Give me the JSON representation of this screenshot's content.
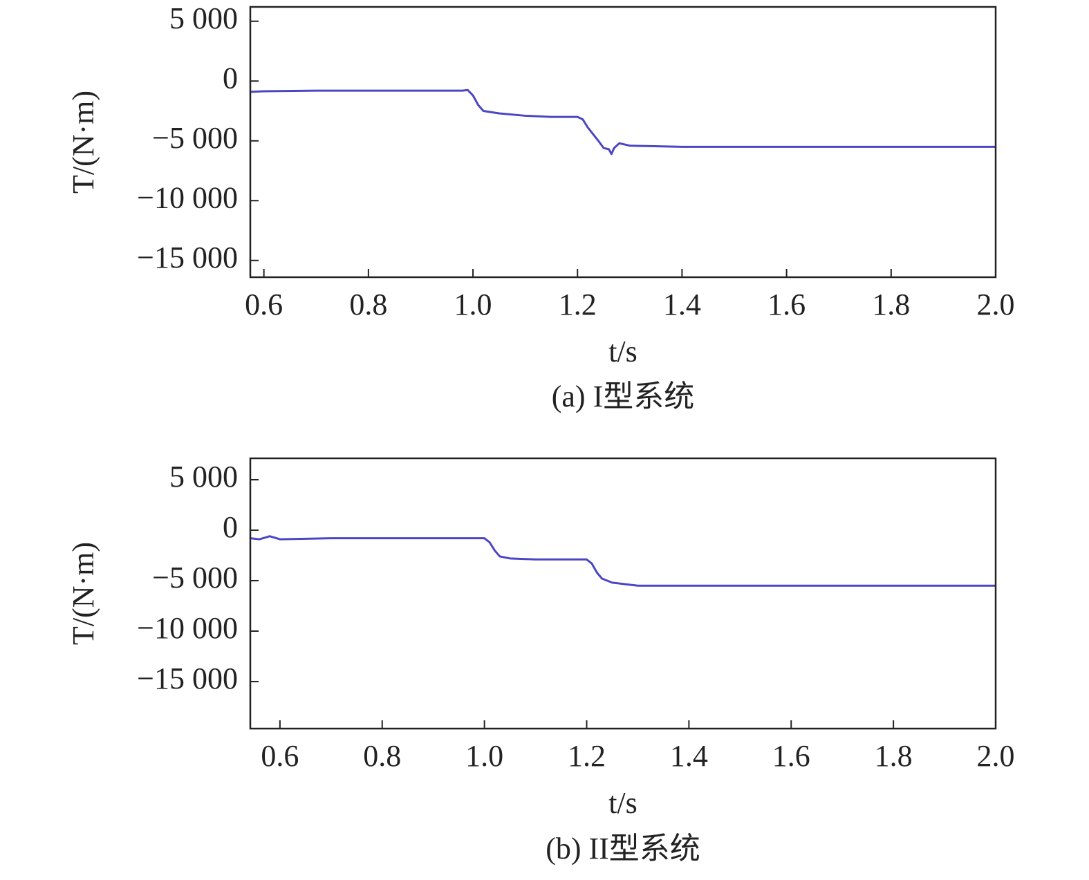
{
  "chart_data": [
    {
      "type": "line",
      "caption": "(a) I型系统",
      "xlabel": "t/s",
      "ylabel": "T/(N·m)",
      "xlim": [
        0.574,
        2.0
      ],
      "ylim": [
        -16400,
        6200
      ],
      "xticks": [
        0.6,
        0.8,
        {
          "value": 1.0,
          "label": "1.0"
        },
        1.2,
        1.4,
        1.6,
        1.8,
        {
          "value": 2.0,
          "label": "2.0"
        }
      ],
      "yticks": [
        {
          "value": 5000,
          "label": "5 000"
        },
        0,
        {
          "value": -5000,
          "label": "−5 000"
        },
        {
          "value": -10000,
          "label": "−10 000"
        },
        {
          "value": -15000,
          "label": "−15 000"
        }
      ],
      "x": [
        0.574,
        0.6,
        0.7,
        0.8,
        0.9,
        0.98,
        0.99,
        1.0,
        1.01,
        1.02,
        1.05,
        1.1,
        1.15,
        1.19,
        1.2,
        1.21,
        1.22,
        1.24,
        1.25,
        1.26,
        1.265,
        1.27,
        1.28,
        1.3,
        1.4,
        1.6,
        1.8,
        2.0
      ],
      "series": [
        {
          "color": "#4a46c4",
          "values": [
            -900,
            -850,
            -800,
            -800,
            -800,
            -800,
            -750,
            -1200,
            -2000,
            -2500,
            -2700,
            -2900,
            -3000,
            -3000,
            -3000,
            -3200,
            -3900,
            -5000,
            -5600,
            -5700,
            -6100,
            -5600,
            -5200,
            -5400,
            -5500,
            -5500,
            -5500,
            -5500
          ]
        }
      ]
    },
    {
      "type": "line",
      "caption": "(b) II型系统",
      "xlabel": "t/s",
      "ylabel": "T/(N·m)",
      "xlim": [
        0.542,
        2.0
      ],
      "ylim": [
        -19660,
        7120
      ],
      "xticks": [
        0.6,
        0.8,
        {
          "value": 1.0,
          "label": "1.0"
        },
        1.2,
        1.4,
        1.6,
        1.8,
        {
          "value": 2.0,
          "label": "2.0"
        }
      ],
      "yticks": [
        {
          "value": 5000,
          "label": "5 000"
        },
        0,
        {
          "value": -5000,
          "label": "−5 000"
        },
        {
          "value": -10000,
          "label": "−10 000"
        },
        {
          "value": -15000,
          "label": "−15 000"
        }
      ],
      "x": [
        0.542,
        0.56,
        0.58,
        0.6,
        0.7,
        0.8,
        0.9,
        1.0,
        1.01,
        1.02,
        1.03,
        1.05,
        1.1,
        1.15,
        1.2,
        1.21,
        1.22,
        1.23,
        1.25,
        1.3,
        1.4,
        1.6,
        1.8,
        2.0
      ],
      "series": [
        {
          "color": "#4a46c4",
          "values": [
            -800,
            -900,
            -600,
            -900,
            -800,
            -800,
            -800,
            -800,
            -1200,
            -2000,
            -2600,
            -2800,
            -2900,
            -2900,
            -2900,
            -3300,
            -4200,
            -4800,
            -5200,
            -5500,
            -5500,
            -5500,
            -5500,
            -5500
          ]
        }
      ]
    }
  ]
}
